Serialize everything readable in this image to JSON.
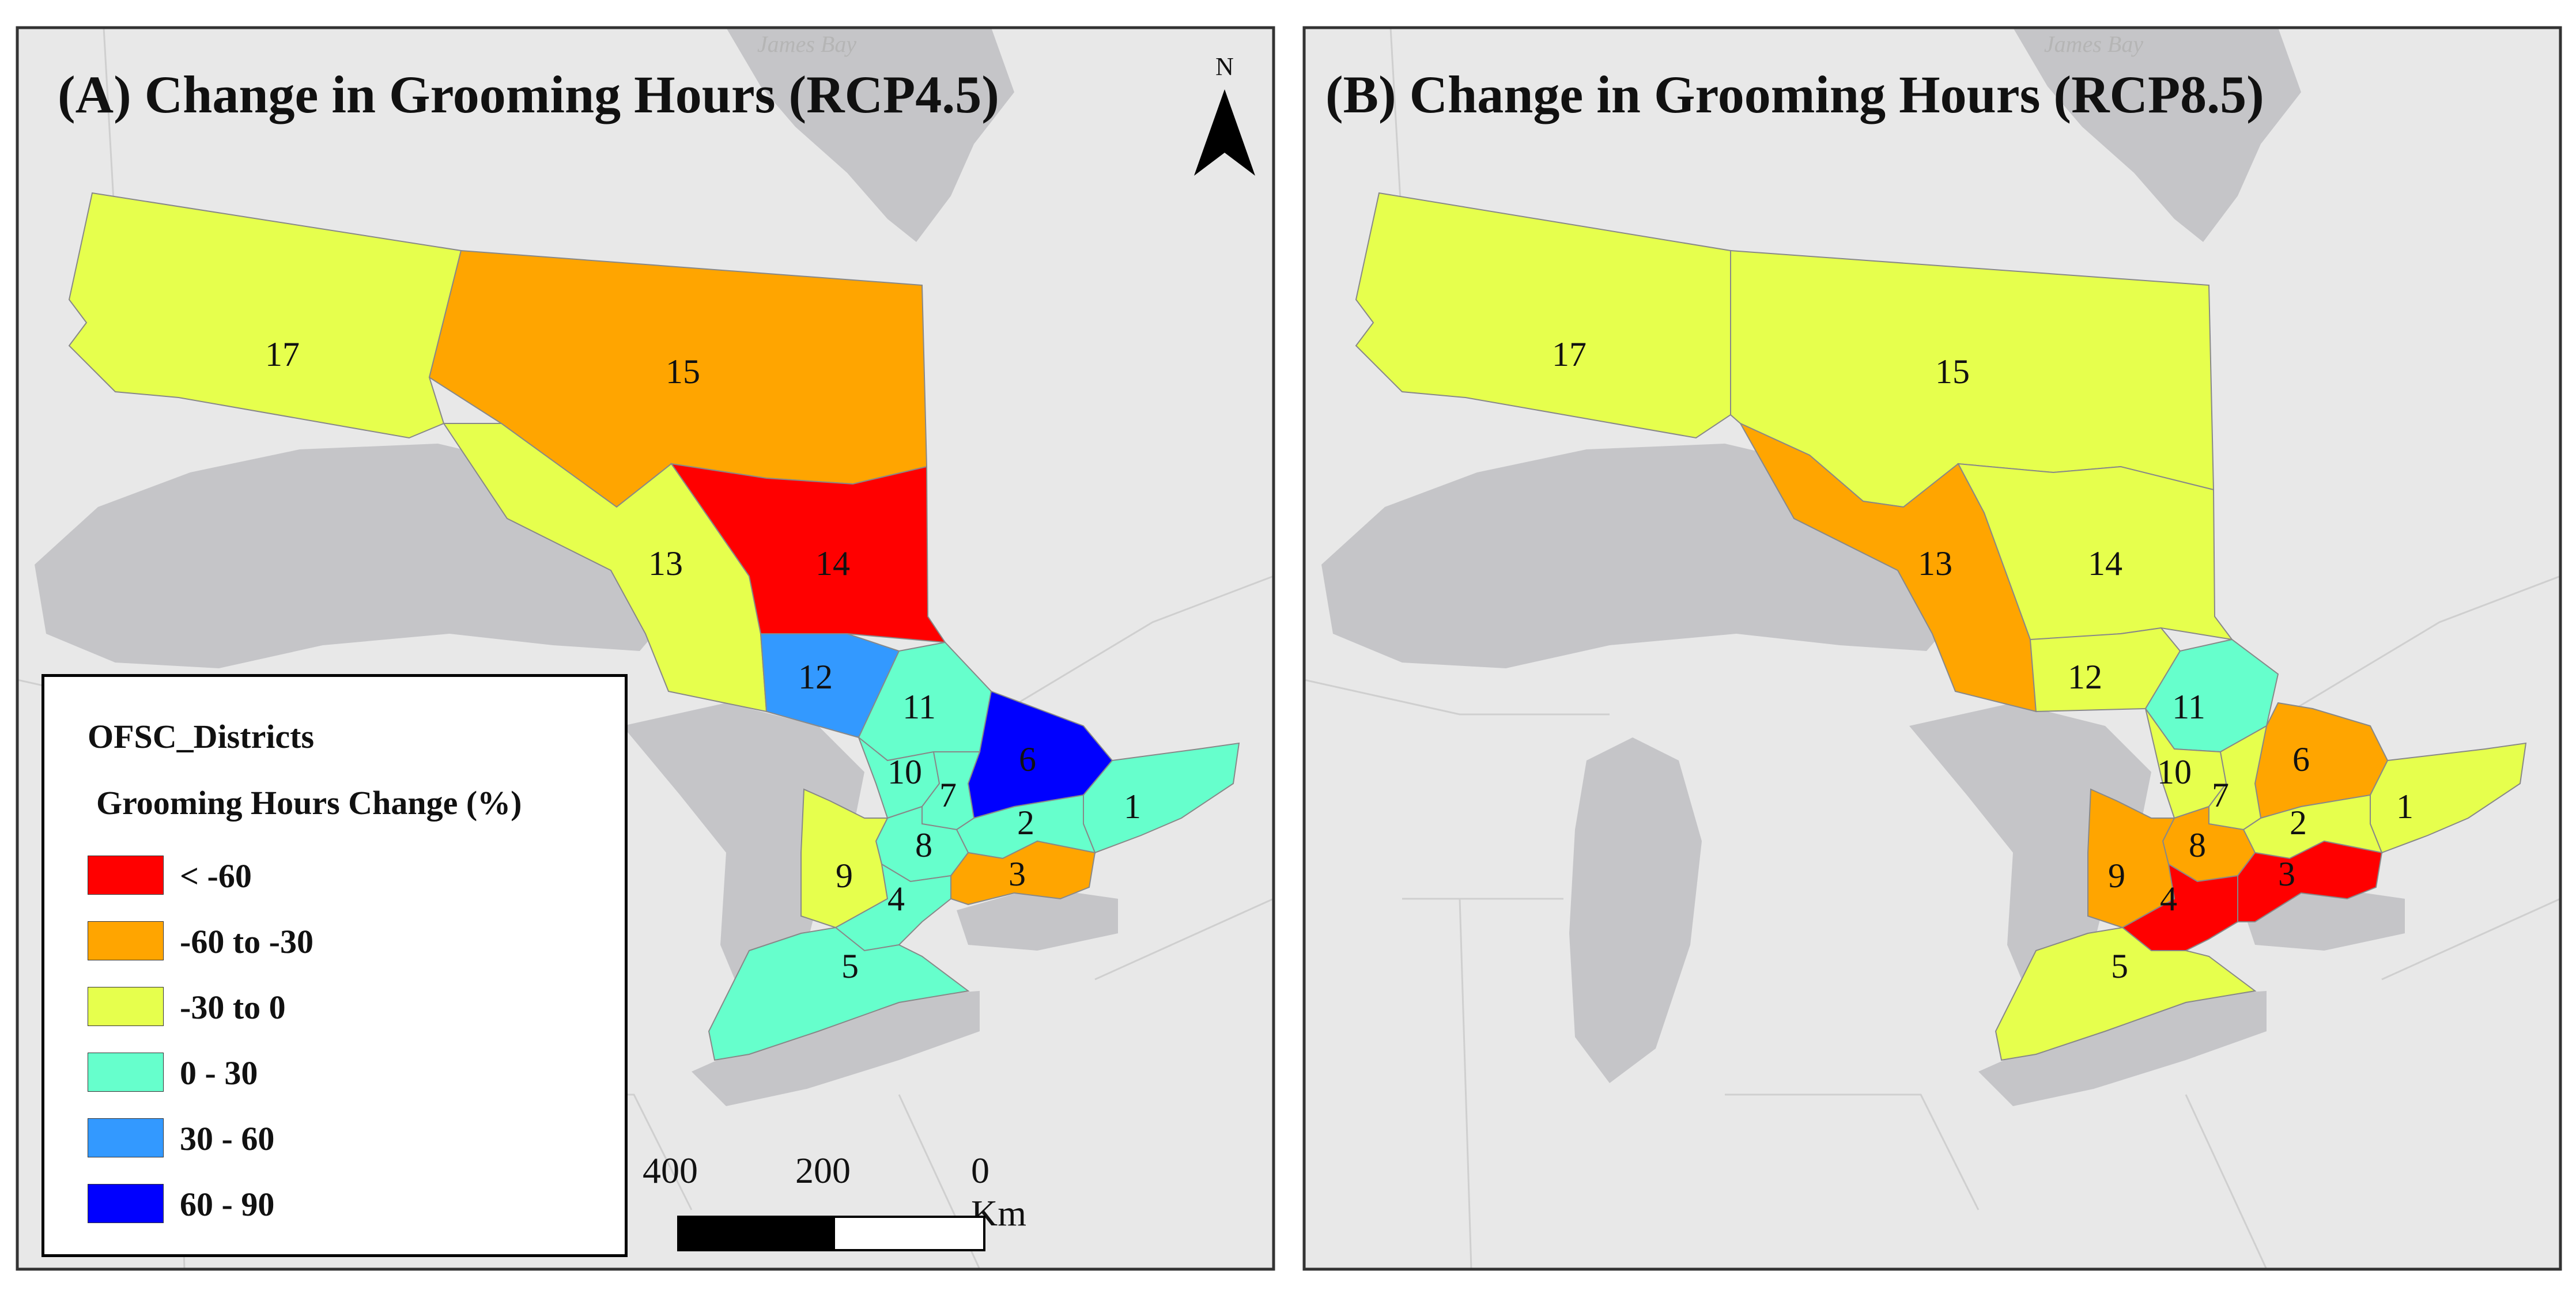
{
  "panels": [
    {
      "title": "(A) Change in Grooming Hours (RCP4.5)",
      "water_label": "James Bay",
      "districts": [
        {
          "id": "1",
          "class": "0 - 30"
        },
        {
          "id": "2",
          "class": "0 - 30"
        },
        {
          "id": "3",
          "class": "-60 to -30"
        },
        {
          "id": "4",
          "class": "0 - 30"
        },
        {
          "id": "5",
          "class": "0 - 30"
        },
        {
          "id": "6",
          "class": "60 - 90"
        },
        {
          "id": "7",
          "class": "0 - 30"
        },
        {
          "id": "8",
          "class": "0 - 30"
        },
        {
          "id": "9",
          "class": "-30 to 0"
        },
        {
          "id": "10",
          "class": "0 - 30"
        },
        {
          "id": "11",
          "class": "0 - 30"
        },
        {
          "id": "12",
          "class": "30 - 60"
        },
        {
          "id": "13",
          "class": "-30 to 0"
        },
        {
          "id": "14",
          "class": "< -60"
        },
        {
          "id": "15",
          "class": "-60 to -30"
        },
        {
          "id": "17",
          "class": "-30 to 0"
        }
      ]
    },
    {
      "title": "(B) Change in Grooming Hours (RCP8.5)",
      "water_label": "James Bay",
      "districts": [
        {
          "id": "1",
          "class": "-30 to 0"
        },
        {
          "id": "2",
          "class": "-30 to 0"
        },
        {
          "id": "3",
          "class": "< -60"
        },
        {
          "id": "4",
          "class": "< -60"
        },
        {
          "id": "5",
          "class": "-30 to 0"
        },
        {
          "id": "6",
          "class": "-60 to -30"
        },
        {
          "id": "7",
          "class": "-30 to 0"
        },
        {
          "id": "8",
          "class": "-60 to -30"
        },
        {
          "id": "9",
          "class": "-60 to -30"
        },
        {
          "id": "10",
          "class": "-30 to 0"
        },
        {
          "id": "11",
          "class": "0 - 30"
        },
        {
          "id": "12",
          "class": "-30 to 0"
        },
        {
          "id": "13",
          "class": "-60 to -30"
        },
        {
          "id": "14",
          "class": "-30 to 0"
        },
        {
          "id": "15",
          "class": "-30 to 0"
        },
        {
          "id": "17",
          "class": "-30 to 0"
        }
      ]
    }
  ],
  "north_arrow_label": "N",
  "legend": {
    "title": "OFSC_Districts",
    "subtitle": "Grooming Hours Change (%)",
    "items": [
      {
        "label": "< -60",
        "color": "#ff0000"
      },
      {
        "label": "-60 to -30",
        "color": "#ffa500"
      },
      {
        "label": "-30 to 0",
        "color": "#e6ff4d"
      },
      {
        "label": "0 - 30",
        "color": "#66ffcc"
      },
      {
        "label": "30 - 60",
        "color": "#3399ff"
      },
      {
        "label": "60 - 90",
        "color": "#0000ff"
      }
    ]
  },
  "scale_bar": {
    "labels": [
      "400",
      "200",
      "0 Km"
    ]
  },
  "colors": {
    "land": "#e8e8e8",
    "water": "#c5c5c8",
    "frame": "#333333"
  }
}
